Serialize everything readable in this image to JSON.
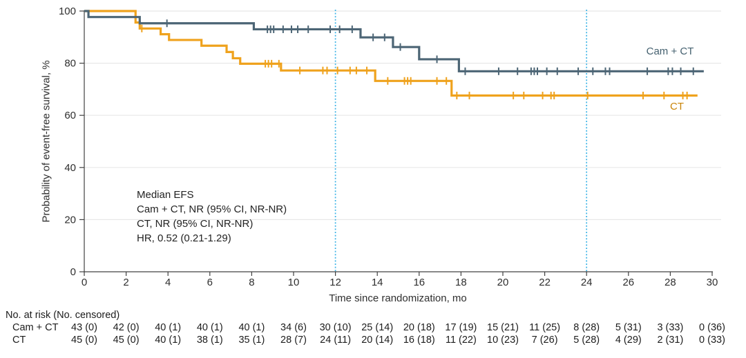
{
  "figure": {
    "y_axis_title": "Probability of event-free survival, %",
    "x_axis_title": "Time since randomization, mo"
  },
  "annotation": {
    "lines": [
      "Median EFS",
      "Cam + CT, NR (95% CI, NR-NR)",
      "CT, NR (95% CI, NR-NR)",
      "HR, 0.52 (0.21-1.29)"
    ]
  },
  "chart_data": {
    "type": "line",
    "subtype": "kaplan-meier-step",
    "title": "",
    "xlabel": "Time since randomization, mo",
    "ylabel": "Probability of event-free survival, %",
    "xlim": [
      0,
      30
    ],
    "ylim": [
      0,
      100
    ],
    "x_ticks": [
      0,
      2,
      4,
      6,
      8,
      10,
      12,
      14,
      16,
      18,
      20,
      22,
      24,
      26,
      28,
      30
    ],
    "y_ticks": [
      0,
      20,
      40,
      60,
      80,
      100
    ],
    "grid": true,
    "reference_vlines": [
      12,
      24
    ],
    "colors": {
      "camct": "#4c6575",
      "ct": "#efa21d",
      "vline": "#3cb4e6",
      "grid": "#e8e8e8",
      "axis": "#404040"
    },
    "series": [
      {
        "name": "Cam + CT",
        "color": "#4c6575",
        "end_time": 29.6,
        "steps": [
          [
            0,
            100
          ],
          [
            0.2,
            97.7
          ],
          [
            2.65,
            95.3
          ],
          [
            8.1,
            93.0
          ],
          [
            13.2,
            89.9
          ],
          [
            14.75,
            86.2
          ],
          [
            16.0,
            81.5
          ],
          [
            17.9,
            76.9
          ]
        ],
        "censor_marks": [
          [
            3.95,
            95.3
          ],
          [
            8.75,
            93.0
          ],
          [
            8.9,
            93.0
          ],
          [
            9.05,
            93.0
          ],
          [
            9.5,
            93.0
          ],
          [
            9.9,
            93.0
          ],
          [
            10.2,
            93.0
          ],
          [
            10.7,
            93.0
          ],
          [
            11.75,
            93.0
          ],
          [
            12.2,
            93.0
          ],
          [
            12.8,
            93.0
          ],
          [
            13.8,
            89.9
          ],
          [
            14.35,
            89.9
          ],
          [
            15.1,
            86.2
          ],
          [
            16.85,
            81.5
          ],
          [
            18.2,
            76.9
          ],
          [
            19.8,
            76.9
          ],
          [
            20.7,
            76.9
          ],
          [
            21.35,
            76.9
          ],
          [
            21.5,
            76.9
          ],
          [
            21.65,
            76.9
          ],
          [
            22.1,
            76.9
          ],
          [
            22.6,
            76.9
          ],
          [
            23.6,
            76.9
          ],
          [
            24.3,
            76.9
          ],
          [
            24.9,
            76.9
          ],
          [
            25.1,
            76.9
          ],
          [
            26.9,
            76.9
          ],
          [
            27.9,
            76.9
          ],
          [
            28.1,
            76.9
          ],
          [
            28.5,
            76.9
          ],
          [
            29.1,
            76.9
          ]
        ]
      },
      {
        "name": "CT",
        "color": "#efa21d",
        "end_time": 29.3,
        "steps": [
          [
            0,
            100
          ],
          [
            2.45,
            95.6
          ],
          [
            2.65,
            93.3
          ],
          [
            3.65,
            91.1
          ],
          [
            4.05,
            88.9
          ],
          [
            5.6,
            86.7
          ],
          [
            6.8,
            84.3
          ],
          [
            7.1,
            81.9
          ],
          [
            7.45,
            79.8
          ],
          [
            9.4,
            77.2
          ],
          [
            13.9,
            73.2
          ],
          [
            17.55,
            67.6
          ]
        ],
        "censor_marks": [
          [
            2.75,
            93.3
          ],
          [
            8.65,
            79.8
          ],
          [
            8.8,
            79.8
          ],
          [
            8.95,
            79.8
          ],
          [
            9.3,
            79.8
          ],
          [
            10.3,
            77.2
          ],
          [
            11.4,
            77.2
          ],
          [
            11.6,
            77.2
          ],
          [
            12.1,
            77.2
          ],
          [
            12.7,
            77.2
          ],
          [
            13.0,
            77.2
          ],
          [
            13.5,
            77.2
          ],
          [
            14.5,
            73.2
          ],
          [
            15.3,
            73.2
          ],
          [
            15.45,
            73.2
          ],
          [
            15.6,
            73.2
          ],
          [
            16.85,
            73.2
          ],
          [
            17.3,
            73.2
          ],
          [
            17.8,
            67.6
          ],
          [
            18.4,
            67.6
          ],
          [
            20.5,
            67.6
          ],
          [
            21.0,
            67.6
          ],
          [
            21.9,
            67.6
          ],
          [
            22.3,
            67.6
          ],
          [
            22.45,
            67.6
          ],
          [
            24.05,
            67.6
          ],
          [
            26.7,
            67.6
          ],
          [
            27.7,
            67.6
          ],
          [
            28.6,
            67.6
          ],
          [
            28.8,
            67.6
          ]
        ]
      }
    ]
  },
  "risk_table": {
    "header": "No. at risk (No. censored)",
    "time_points": [
      0,
      2,
      4,
      6,
      8,
      10,
      12,
      14,
      16,
      18,
      20,
      22,
      24,
      26,
      28,
      30
    ],
    "rows": [
      {
        "label": "Cam + CT",
        "values": [
          "43 (0)",
          "42 (0)",
          "40 (1)",
          "40 (1)",
          "40 (1)",
          "34 (6)",
          "30 (10)",
          "25 (14)",
          "20 (18)",
          "17 (19)",
          "15 (21)",
          "11 (25)",
          "8 (28)",
          "5 (31)",
          "3 (33)",
          "0 (36)"
        ]
      },
      {
        "label": "CT",
        "values": [
          "45 (0)",
          "45 (0)",
          "40 (1)",
          "38 (1)",
          "35 (1)",
          "28 (7)",
          "24 (11)",
          "20 (14)",
          "16 (18)",
          "11 (22)",
          "10 (23)",
          "7 (26)",
          "5 (28)",
          "4 (29)",
          "2 (31)",
          "0 (33)"
        ]
      }
    ]
  }
}
